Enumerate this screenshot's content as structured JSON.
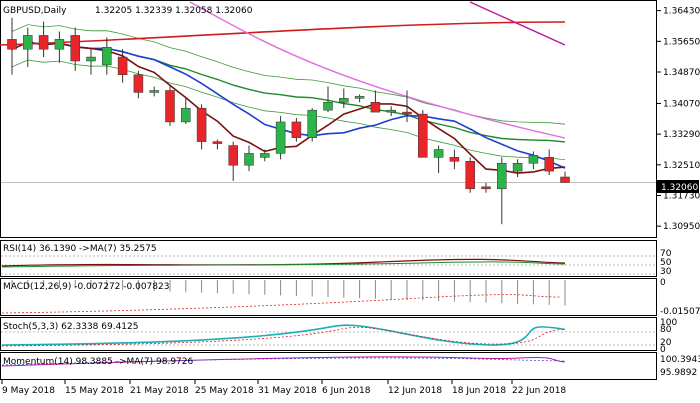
{
  "header": {
    "symbol": "GBPUSD,Daily",
    "ohlc": "1.32205 1.32339 1.32058 1.32060"
  },
  "price_axis": {
    "ticks": [
      "1.36430",
      "1.35650",
      "1.34870",
      "1.34070",
      "1.33290",
      "1.32510",
      "1.31730",
      "1.30950"
    ],
    "current_label": "1.32060"
  },
  "date_axis": [
    "9 May 2018",
    "15 May 2018",
    "21 May 2018",
    "25 May 2018",
    "31 May 2018",
    "6 Jun 2018",
    "12 Jun 2018",
    "18 Jun 2018",
    "22 Jun 2018"
  ],
  "panels": {
    "rsi": {
      "label": "RSI(14) 36.1390 ->MA(7) 35.2575",
      "ticks": [
        "70",
        "50",
        "30"
      ]
    },
    "macd": {
      "label": "MACD(12,26,9) -0.007272 -0.007823",
      "ticks": [
        "0",
        "-0.015074"
      ]
    },
    "stoch": {
      "label": "Stoch(5,3,3) 62.3338 69.4125",
      "ticks": [
        "100",
        "80",
        "20",
        "0"
      ]
    },
    "momentum": {
      "label": "Momentum(14) 98.3885 ->MA(7) 98.9726",
      "ticks": [
        "100.3943",
        "95.9892"
      ]
    }
  },
  "colors": {
    "bull": "#2db34a",
    "bear": "#e8262a",
    "ma_fast": "#7a1010",
    "ma_blue": "#1f3fd0",
    "ma_green": "#1e8a2a",
    "ma_pink": "#e070e0",
    "ma_magenta": "#c0179a",
    "ma_red": "#d11a1a",
    "band": "#3c9a3c",
    "stoch_main": "#18b0b8",
    "stoch_signal": "#e02020"
  },
  "chart_data": {
    "type": "candlestick",
    "candles": [
      {
        "o": 1.357,
        "h": 1.3625,
        "l": 1.348,
        "c": 1.3545
      },
      {
        "o": 1.3545,
        "h": 1.36,
        "l": 1.35,
        "c": 1.358
      },
      {
        "o": 1.358,
        "h": 1.3615,
        "l": 1.3525,
        "c": 1.3545
      },
      {
        "o": 1.3545,
        "h": 1.359,
        "l": 1.351,
        "c": 1.357
      },
      {
        "o": 1.358,
        "h": 1.36,
        "l": 1.349,
        "c": 1.3515
      },
      {
        "o": 1.3515,
        "h": 1.3545,
        "l": 1.348,
        "c": 1.3525
      },
      {
        "o": 1.3505,
        "h": 1.3575,
        "l": 1.348,
        "c": 1.355
      },
      {
        "o": 1.3525,
        "h": 1.3545,
        "l": 1.346,
        "c": 1.348
      },
      {
        "o": 1.348,
        "h": 1.349,
        "l": 1.342,
        "c": 1.3435
      },
      {
        "o": 1.3435,
        "h": 1.345,
        "l": 1.3425,
        "c": 1.344
      },
      {
        "o": 1.344,
        "h": 1.345,
        "l": 1.335,
        "c": 1.336
      },
      {
        "o": 1.336,
        "h": 1.342,
        "l": 1.3355,
        "c": 1.3395
      },
      {
        "o": 1.3395,
        "h": 1.3405,
        "l": 1.329,
        "c": 1.331
      },
      {
        "o": 1.331,
        "h": 1.3315,
        "l": 1.329,
        "c": 1.3305
      },
      {
        "o": 1.33,
        "h": 1.331,
        "l": 1.321,
        "c": 1.325
      },
      {
        "o": 1.325,
        "h": 1.33,
        "l": 1.3235,
        "c": 1.328
      },
      {
        "o": 1.327,
        "h": 1.329,
        "l": 1.326,
        "c": 1.328
      },
      {
        "o": 1.328,
        "h": 1.3375,
        "l": 1.3265,
        "c": 1.336
      },
      {
        "o": 1.336,
        "h": 1.337,
        "l": 1.331,
        "c": 1.332
      },
      {
        "o": 1.332,
        "h": 1.3395,
        "l": 1.331,
        "c": 1.339
      },
      {
        "o": 1.339,
        "h": 1.345,
        "l": 1.3385,
        "c": 1.341
      },
      {
        "o": 1.341,
        "h": 1.3445,
        "l": 1.3395,
        "c": 1.342
      },
      {
        "o": 1.342,
        "h": 1.343,
        "l": 1.341,
        "c": 1.3425
      },
      {
        "o": 1.341,
        "h": 1.344,
        "l": 1.3385,
        "c": 1.3385
      },
      {
        "o": 1.3385,
        "h": 1.34,
        "l": 1.3375,
        "c": 1.339
      },
      {
        "o": 1.3385,
        "h": 1.344,
        "l": 1.336,
        "c": 1.338
      },
      {
        "o": 1.338,
        "h": 1.339,
        "l": 1.327,
        "c": 1.327
      },
      {
        "o": 1.327,
        "h": 1.33,
        "l": 1.323,
        "c": 1.329
      },
      {
        "o": 1.327,
        "h": 1.329,
        "l": 1.324,
        "c": 1.326
      },
      {
        "o": 1.326,
        "h": 1.327,
        "l": 1.318,
        "c": 1.319
      },
      {
        "o": 1.3195,
        "h": 1.3205,
        "l": 1.318,
        "c": 1.319
      },
      {
        "o": 1.319,
        "h": 1.327,
        "l": 1.31,
        "c": 1.3255
      },
      {
        "o": 1.3235,
        "h": 1.3265,
        "l": 1.322,
        "c": 1.3255
      },
      {
        "o": 1.3255,
        "h": 1.3285,
        "l": 1.324,
        "c": 1.3275
      },
      {
        "o": 1.327,
        "h": 1.329,
        "l": 1.3225,
        "c": 1.3235
      },
      {
        "o": 1.322,
        "h": 1.3234,
        "l": 1.3206,
        "c": 1.3206
      }
    ]
  }
}
